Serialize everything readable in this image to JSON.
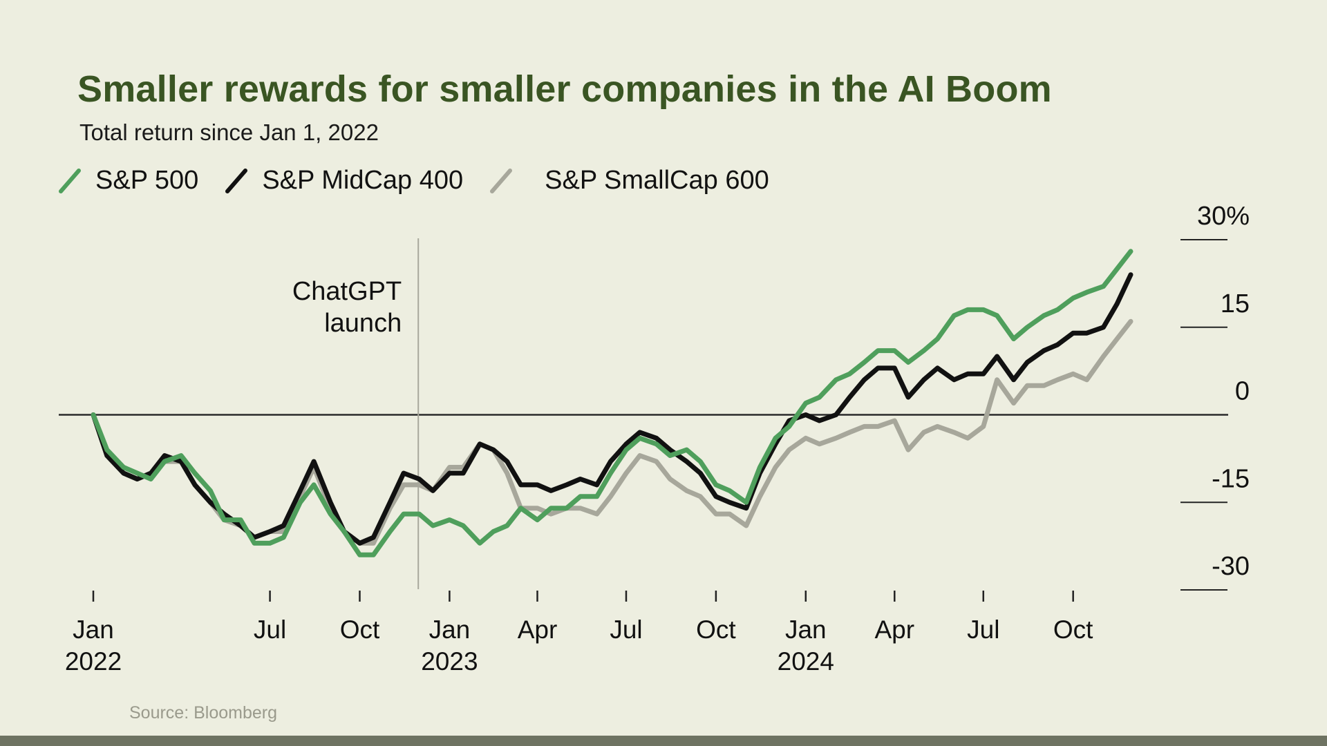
{
  "chart_data": {
    "type": "line",
    "title": "Smaller rewards for smaller companies in the AI Boom",
    "subtitle": "Total return since Jan 1, 2022",
    "source": "Source: Bloomberg",
    "ylim": [
      -30,
      30
    ],
    "yticks": [
      {
        "value": 30,
        "label": "30%"
      },
      {
        "value": 15,
        "label": "15"
      },
      {
        "value": 0,
        "label": "0"
      },
      {
        "value": -15,
        "label": "-15"
      },
      {
        "value": -30,
        "label": "-30"
      }
    ],
    "xlim": [
      "2022-01-01",
      "2024-11-29"
    ],
    "xticks": [
      {
        "date": "2022-01-01",
        "label": "Jan",
        "year": "2022"
      },
      {
        "date": "2022-07-01",
        "label": "Jul",
        "year": ""
      },
      {
        "date": "2022-10-01",
        "label": "Oct",
        "year": ""
      },
      {
        "date": "2023-01-01",
        "label": "Jan",
        "year": "2023"
      },
      {
        "date": "2023-04-01",
        "label": "Apr",
        "year": ""
      },
      {
        "date": "2023-07-01",
        "label": "Jul",
        "year": ""
      },
      {
        "date": "2023-10-01",
        "label": "Oct",
        "year": ""
      },
      {
        "date": "2024-01-01",
        "label": "Jan",
        "year": "2024"
      },
      {
        "date": "2024-04-01",
        "label": "Apr",
        "year": ""
      },
      {
        "date": "2024-07-01",
        "label": "Jul",
        "year": ""
      },
      {
        "date": "2024-10-01",
        "label": "Oct",
        "year": ""
      }
    ],
    "annotation": {
      "date": "2022-11-30",
      "lines": [
        "ChatGPT",
        "launch"
      ]
    },
    "legend_position": "top-left",
    "x": [
      "2022-01-01",
      "2022-01-15",
      "2022-02-01",
      "2022-02-15",
      "2022-03-01",
      "2022-03-15",
      "2022-04-01",
      "2022-04-15",
      "2022-05-01",
      "2022-05-15",
      "2022-06-01",
      "2022-06-15",
      "2022-07-01",
      "2022-07-15",
      "2022-08-01",
      "2022-08-15",
      "2022-09-01",
      "2022-09-15",
      "2022-10-01",
      "2022-10-15",
      "2022-11-01",
      "2022-11-15",
      "2022-12-01",
      "2022-12-15",
      "2023-01-01",
      "2023-01-15",
      "2023-02-01",
      "2023-02-15",
      "2023-03-01",
      "2023-03-15",
      "2023-04-01",
      "2023-04-15",
      "2023-05-01",
      "2023-05-15",
      "2023-06-01",
      "2023-06-15",
      "2023-07-01",
      "2023-07-15",
      "2023-08-01",
      "2023-08-15",
      "2023-09-01",
      "2023-09-15",
      "2023-10-01",
      "2023-10-15",
      "2023-11-01",
      "2023-11-15",
      "2023-12-01",
      "2023-12-15",
      "2024-01-01",
      "2024-01-15",
      "2024-02-01",
      "2024-02-15",
      "2024-03-01",
      "2024-03-15",
      "2024-04-01",
      "2024-04-15",
      "2024-05-01",
      "2024-05-15",
      "2024-06-01",
      "2024-06-15",
      "2024-07-01",
      "2024-07-15",
      "2024-08-01",
      "2024-08-15",
      "2024-09-01",
      "2024-09-15",
      "2024-10-01",
      "2024-10-15",
      "2024-11-01",
      "2024-11-15",
      "2024-11-29"
    ],
    "series": [
      {
        "name": "S&P 500",
        "color": "#4f9f5c",
        "values": [
          0,
          -6,
          -9,
          -10,
          -11,
          -8,
          -7,
          -10,
          -13,
          -18,
          -18,
          -22,
          -22,
          -21,
          -15,
          -12,
          -17,
          -20,
          -24,
          -24,
          -20,
          -17,
          -17,
          -19,
          -18,
          -19,
          -22,
          -20,
          -19,
          -16,
          -18,
          -16,
          -16,
          -14,
          -14,
          -10,
          -6,
          -4,
          -5,
          -7,
          -6,
          -8,
          -12,
          -13,
          -15,
          -9,
          -4,
          -2,
          2,
          3,
          6,
          7,
          9,
          11,
          11,
          9,
          11,
          13,
          17,
          18,
          18,
          17,
          13,
          15,
          17,
          18,
          20,
          21,
          22,
          25,
          28
        ]
      },
      {
        "name": "S&P MidCap 400",
        "color": "#111111",
        "values": [
          0,
          -7,
          -10,
          -11,
          -10,
          -7,
          -8,
          -12,
          -15,
          -17,
          -19,
          -21,
          -20,
          -19,
          -13,
          -8,
          -15,
          -20,
          -22,
          -21,
          -15,
          -10,
          -11,
          -13,
          -10,
          -10,
          -5,
          -6,
          -8,
          -12,
          -12,
          -13,
          -12,
          -11,
          -12,
          -8,
          -5,
          -3,
          -4,
          -6,
          -8,
          -10,
          -14,
          -15,
          -16,
          -10,
          -5,
          -1,
          0,
          -1,
          0,
          3,
          6,
          8,
          8,
          3,
          6,
          8,
          6,
          7,
          7,
          10,
          6,
          9,
          11,
          12,
          14,
          14,
          15,
          19,
          24
        ]
      },
      {
        "name": "S&P SmallCap 600",
        "color": "#a7a79b",
        "values": [
          0,
          -7,
          -10,
          -11,
          -10,
          -8,
          -8,
          -12,
          -15,
          -18,
          -19,
          -21,
          -20,
          -20,
          -14,
          -9,
          -16,
          -20,
          -22,
          -22,
          -16,
          -12,
          -12,
          -13,
          -9,
          -9,
          -5,
          -6,
          -10,
          -16,
          -16,
          -17,
          -16,
          -16,
          -17,
          -14,
          -10,
          -7,
          -8,
          -11,
          -13,
          -14,
          -17,
          -17,
          -19,
          -14,
          -9,
          -6,
          -4,
          -5,
          -4,
          -3,
          -2,
          -2,
          -1,
          -6,
          -3,
          -2,
          -3,
          -4,
          -2,
          6,
          2,
          5,
          5,
          6,
          7,
          6,
          10,
          13,
          16
        ]
      }
    ]
  }
}
